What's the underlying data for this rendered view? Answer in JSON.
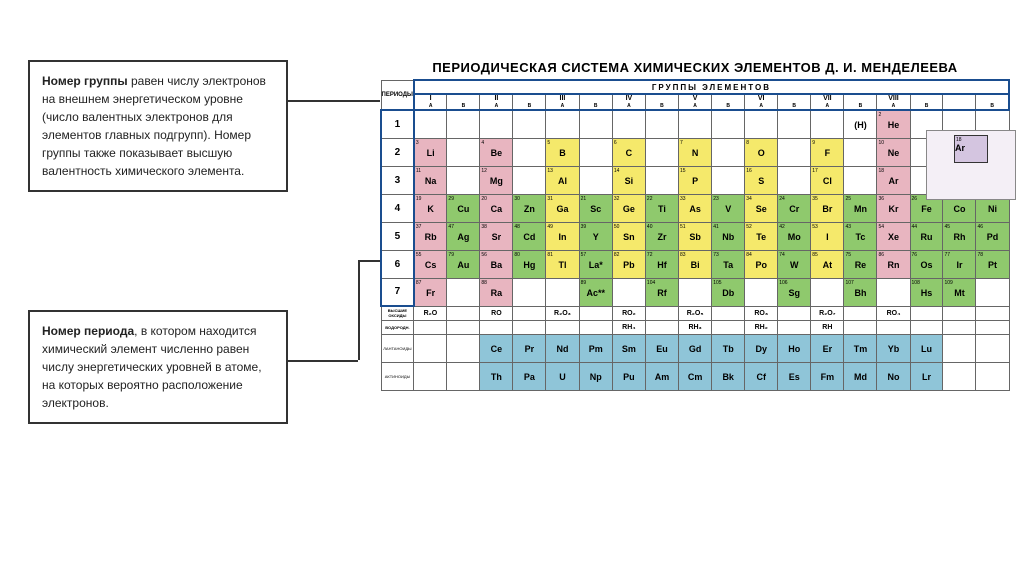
{
  "callouts": {
    "group": {
      "title": "Номер группы",
      "text": " равен числу электронов на внешнем энергетическом уровне (число валентных электронов для элементов главных подгрупп). Номер группы также показывает высшую валентность химического элемента."
    },
    "period": {
      "title": "Номер периода",
      "text": ", в котором находится химический элемент численно равен числу энергетических уровней в атоме, на которых вероятно расположение электронов."
    }
  },
  "table": {
    "title": "ПЕРИОДИЧЕСКАЯ СИСТЕМА ХИМИЧЕСКИХ ЭЛЕМЕНТОВ Д. И. МЕНДЕЛЕЕВА",
    "periods_label": "ПЕРИОДЫ",
    "groups_label": "ГРУППЫ ЭЛЕМЕНТОВ",
    "group_headers": [
      "I",
      "",
      "II",
      "",
      "III",
      "",
      "IV",
      "",
      "V",
      "",
      "VI",
      "",
      "VII",
      "",
      "VIII",
      "",
      "",
      ""
    ],
    "sub_headers": [
      "A",
      "B",
      "A",
      "B",
      "A",
      "B",
      "A",
      "B",
      "A",
      "B",
      "A",
      "B",
      "A",
      "B",
      "A",
      "B",
      "",
      "B"
    ],
    "periods": [
      "1",
      "2",
      "3",
      "4",
      "5",
      "6",
      "7"
    ],
    "colors": {
      "pink": "#e8b5c0",
      "yellow": "#f5e96b",
      "green": "#8fc96d",
      "blue": "#8fc5d8",
      "purple": "#d4c5e0",
      "white": "#ffffff",
      "header_blue": "#1a4d8f"
    },
    "elements": [
      [
        {
          "s": "",
          "n": "",
          "c": "white"
        },
        {
          "s": "",
          "n": "",
          "c": "white"
        },
        {
          "s": "",
          "n": "",
          "c": "white"
        },
        {
          "s": "",
          "n": "",
          "c": "white"
        },
        {
          "s": "",
          "n": "",
          "c": "white"
        },
        {
          "s": "",
          "n": "",
          "c": "white"
        },
        {
          "s": "",
          "n": "",
          "c": "white"
        },
        {
          "s": "",
          "n": "",
          "c": "white"
        },
        {
          "s": "",
          "n": "",
          "c": "white"
        },
        {
          "s": "",
          "n": "",
          "c": "white"
        },
        {
          "s": "",
          "n": "",
          "c": "white"
        },
        {
          "s": "",
          "n": "",
          "c": "white"
        },
        {
          "s": "",
          "n": "",
          "c": "white"
        },
        {
          "s": "(H)",
          "n": "",
          "c": "white"
        },
        {
          "s": "He",
          "n": "2",
          "c": "pink"
        },
        {
          "s": "",
          "n": "",
          "c": "white"
        },
        {
          "s": "",
          "n": "",
          "c": "white"
        },
        {
          "s": "",
          "n": "",
          "c": "white"
        }
      ],
      [
        {
          "s": "Li",
          "n": "3",
          "c": "pink"
        },
        {
          "s": "",
          "c": "white"
        },
        {
          "s": "Be",
          "n": "4",
          "c": "pink"
        },
        {
          "s": "",
          "c": "white"
        },
        {
          "s": "B",
          "n": "5",
          "c": "yellow"
        },
        {
          "s": "",
          "c": "white"
        },
        {
          "s": "C",
          "n": "6",
          "c": "yellow"
        },
        {
          "s": "",
          "c": "white"
        },
        {
          "s": "N",
          "n": "7",
          "c": "yellow"
        },
        {
          "s": "",
          "c": "white"
        },
        {
          "s": "O",
          "n": "8",
          "c": "yellow"
        },
        {
          "s": "",
          "c": "white"
        },
        {
          "s": "F",
          "n": "9",
          "c": "yellow"
        },
        {
          "s": "",
          "c": "white"
        },
        {
          "s": "Ne",
          "n": "10",
          "c": "pink"
        },
        {
          "s": "",
          "c": "white"
        },
        {
          "s": "",
          "c": "white"
        },
        {
          "s": "",
          "c": "white"
        }
      ],
      [
        {
          "s": "Na",
          "n": "11",
          "c": "pink"
        },
        {
          "s": "",
          "c": "white"
        },
        {
          "s": "Mg",
          "n": "12",
          "c": "pink"
        },
        {
          "s": "",
          "c": "white"
        },
        {
          "s": "Al",
          "n": "13",
          "c": "yellow"
        },
        {
          "s": "",
          "c": "white"
        },
        {
          "s": "Si",
          "n": "14",
          "c": "yellow"
        },
        {
          "s": "",
          "c": "white"
        },
        {
          "s": "P",
          "n": "15",
          "c": "yellow"
        },
        {
          "s": "",
          "c": "white"
        },
        {
          "s": "S",
          "n": "16",
          "c": "yellow"
        },
        {
          "s": "",
          "c": "white"
        },
        {
          "s": "Cl",
          "n": "17",
          "c": "yellow"
        },
        {
          "s": "",
          "c": "white"
        },
        {
          "s": "Ar",
          "n": "18",
          "c": "pink"
        },
        {
          "s": "",
          "c": "white"
        },
        {
          "s": "",
          "c": "white"
        },
        {
          "s": "",
          "c": "white"
        }
      ],
      [
        {
          "s": "K",
          "n": "19",
          "c": "pink"
        },
        {
          "s": "Cu",
          "n": "29",
          "c": "green"
        },
        {
          "s": "Ca",
          "n": "20",
          "c": "pink"
        },
        {
          "s": "Zn",
          "n": "30",
          "c": "green"
        },
        {
          "s": "Ga",
          "n": "31",
          "c": "yellow"
        },
        {
          "s": "Sc",
          "n": "21",
          "c": "green"
        },
        {
          "s": "Ge",
          "n": "32",
          "c": "yellow"
        },
        {
          "s": "Ti",
          "n": "22",
          "c": "green"
        },
        {
          "s": "As",
          "n": "33",
          "c": "yellow"
        },
        {
          "s": "V",
          "n": "23",
          "c": "green"
        },
        {
          "s": "Se",
          "n": "34",
          "c": "yellow"
        },
        {
          "s": "Cr",
          "n": "24",
          "c": "green"
        },
        {
          "s": "Br",
          "n": "35",
          "c": "yellow"
        },
        {
          "s": "Mn",
          "n": "25",
          "c": "green"
        },
        {
          "s": "Kr",
          "n": "36",
          "c": "pink"
        },
        {
          "s": "Fe",
          "n": "26",
          "c": "green"
        },
        {
          "s": "Co",
          "n": "27",
          "c": "green"
        },
        {
          "s": "Ni",
          "n": "28",
          "c": "green"
        }
      ],
      [
        {
          "s": "Rb",
          "n": "37",
          "c": "pink"
        },
        {
          "s": "Ag",
          "n": "47",
          "c": "green"
        },
        {
          "s": "Sr",
          "n": "38",
          "c": "pink"
        },
        {
          "s": "Cd",
          "n": "48",
          "c": "green"
        },
        {
          "s": "In",
          "n": "49",
          "c": "yellow"
        },
        {
          "s": "Y",
          "n": "39",
          "c": "green"
        },
        {
          "s": "Sn",
          "n": "50",
          "c": "yellow"
        },
        {
          "s": "Zr",
          "n": "40",
          "c": "green"
        },
        {
          "s": "Sb",
          "n": "51",
          "c": "yellow"
        },
        {
          "s": "Nb",
          "n": "41",
          "c": "green"
        },
        {
          "s": "Te",
          "n": "52",
          "c": "yellow"
        },
        {
          "s": "Mo",
          "n": "42",
          "c": "green"
        },
        {
          "s": "I",
          "n": "53",
          "c": "yellow"
        },
        {
          "s": "Tc",
          "n": "43",
          "c": "green"
        },
        {
          "s": "Xe",
          "n": "54",
          "c": "pink"
        },
        {
          "s": "Ru",
          "n": "44",
          "c": "green"
        },
        {
          "s": "Rh",
          "n": "45",
          "c": "green"
        },
        {
          "s": "Pd",
          "n": "46",
          "c": "green"
        }
      ],
      [
        {
          "s": "Cs",
          "n": "55",
          "c": "pink"
        },
        {
          "s": "Au",
          "n": "79",
          "c": "green"
        },
        {
          "s": "Ba",
          "n": "56",
          "c": "pink"
        },
        {
          "s": "Hg",
          "n": "80",
          "c": "green"
        },
        {
          "s": "Tl",
          "n": "81",
          "c": "yellow"
        },
        {
          "s": "La*",
          "n": "57",
          "c": "green"
        },
        {
          "s": "Pb",
          "n": "82",
          "c": "yellow"
        },
        {
          "s": "Hf",
          "n": "72",
          "c": "green"
        },
        {
          "s": "Bi",
          "n": "83",
          "c": "yellow"
        },
        {
          "s": "Ta",
          "n": "73",
          "c": "green"
        },
        {
          "s": "Po",
          "n": "84",
          "c": "yellow"
        },
        {
          "s": "W",
          "n": "74",
          "c": "green"
        },
        {
          "s": "At",
          "n": "85",
          "c": "yellow"
        },
        {
          "s": "Re",
          "n": "75",
          "c": "green"
        },
        {
          "s": "Rn",
          "n": "86",
          "c": "pink"
        },
        {
          "s": "Os",
          "n": "76",
          "c": "green"
        },
        {
          "s": "Ir",
          "n": "77",
          "c": "green"
        },
        {
          "s": "Pt",
          "n": "78",
          "c": "green"
        }
      ],
      [
        {
          "s": "Fr",
          "n": "87",
          "c": "pink"
        },
        {
          "s": "",
          "c": "white"
        },
        {
          "s": "Ra",
          "n": "88",
          "c": "pink"
        },
        {
          "s": "",
          "c": "white"
        },
        {
          "s": "",
          "c": "white"
        },
        {
          "s": "Ac**",
          "n": "89",
          "c": "green"
        },
        {
          "s": "",
          "c": "white"
        },
        {
          "s": "Rf",
          "n": "104",
          "c": "green"
        },
        {
          "s": "",
          "c": "white"
        },
        {
          "s": "Db",
          "n": "105",
          "c": "green"
        },
        {
          "s": "",
          "c": "white"
        },
        {
          "s": "Sg",
          "n": "106",
          "c": "green"
        },
        {
          "s": "",
          "c": "white"
        },
        {
          "s": "Bh",
          "n": "107",
          "c": "green"
        },
        {
          "s": "",
          "c": "white"
        },
        {
          "s": "Hs",
          "n": "108",
          "c": "green"
        },
        {
          "s": "Mt",
          "n": "109",
          "c": "green"
        },
        {
          "s": "",
          "c": "white"
        }
      ]
    ],
    "formula_rows": [
      {
        "label": "ВЫСШИЕ ОКСИДЫ",
        "cells": [
          "R₂O",
          "",
          "RO",
          "",
          "R₂O₃",
          "",
          "RO₂",
          "",
          "R₂O₅",
          "",
          "RO₃",
          "",
          "R₂O₇",
          "",
          "RO₄",
          "",
          "",
          ""
        ]
      },
      {
        "label": "ВОДОРОДН.",
        "cells": [
          "",
          "",
          "",
          "",
          "",
          "",
          "RH₄",
          "",
          "RH₃",
          "",
          "RH₂",
          "",
          "RH",
          "",
          "",
          "",
          "",
          ""
        ]
      }
    ],
    "series": [
      {
        "label": "ЛАНТАНОИДЫ",
        "color": "blue",
        "els": [
          "Ce",
          "Pr",
          "Nd",
          "Pm",
          "Sm",
          "Eu",
          "Gd",
          "Tb",
          "Dy",
          "Ho",
          "Er",
          "Tm",
          "Yb",
          "Lu"
        ]
      },
      {
        "label": "АКТИНОИДЫ",
        "color": "blue",
        "els": [
          "Th",
          "Pa",
          "U",
          "Np",
          "Pu",
          "Am",
          "Cm",
          "Bk",
          "Cf",
          "Es",
          "Fm",
          "Md",
          "No",
          "Lr"
        ]
      }
    ],
    "legend": {
      "symbol": "Ar",
      "number": "18"
    }
  }
}
